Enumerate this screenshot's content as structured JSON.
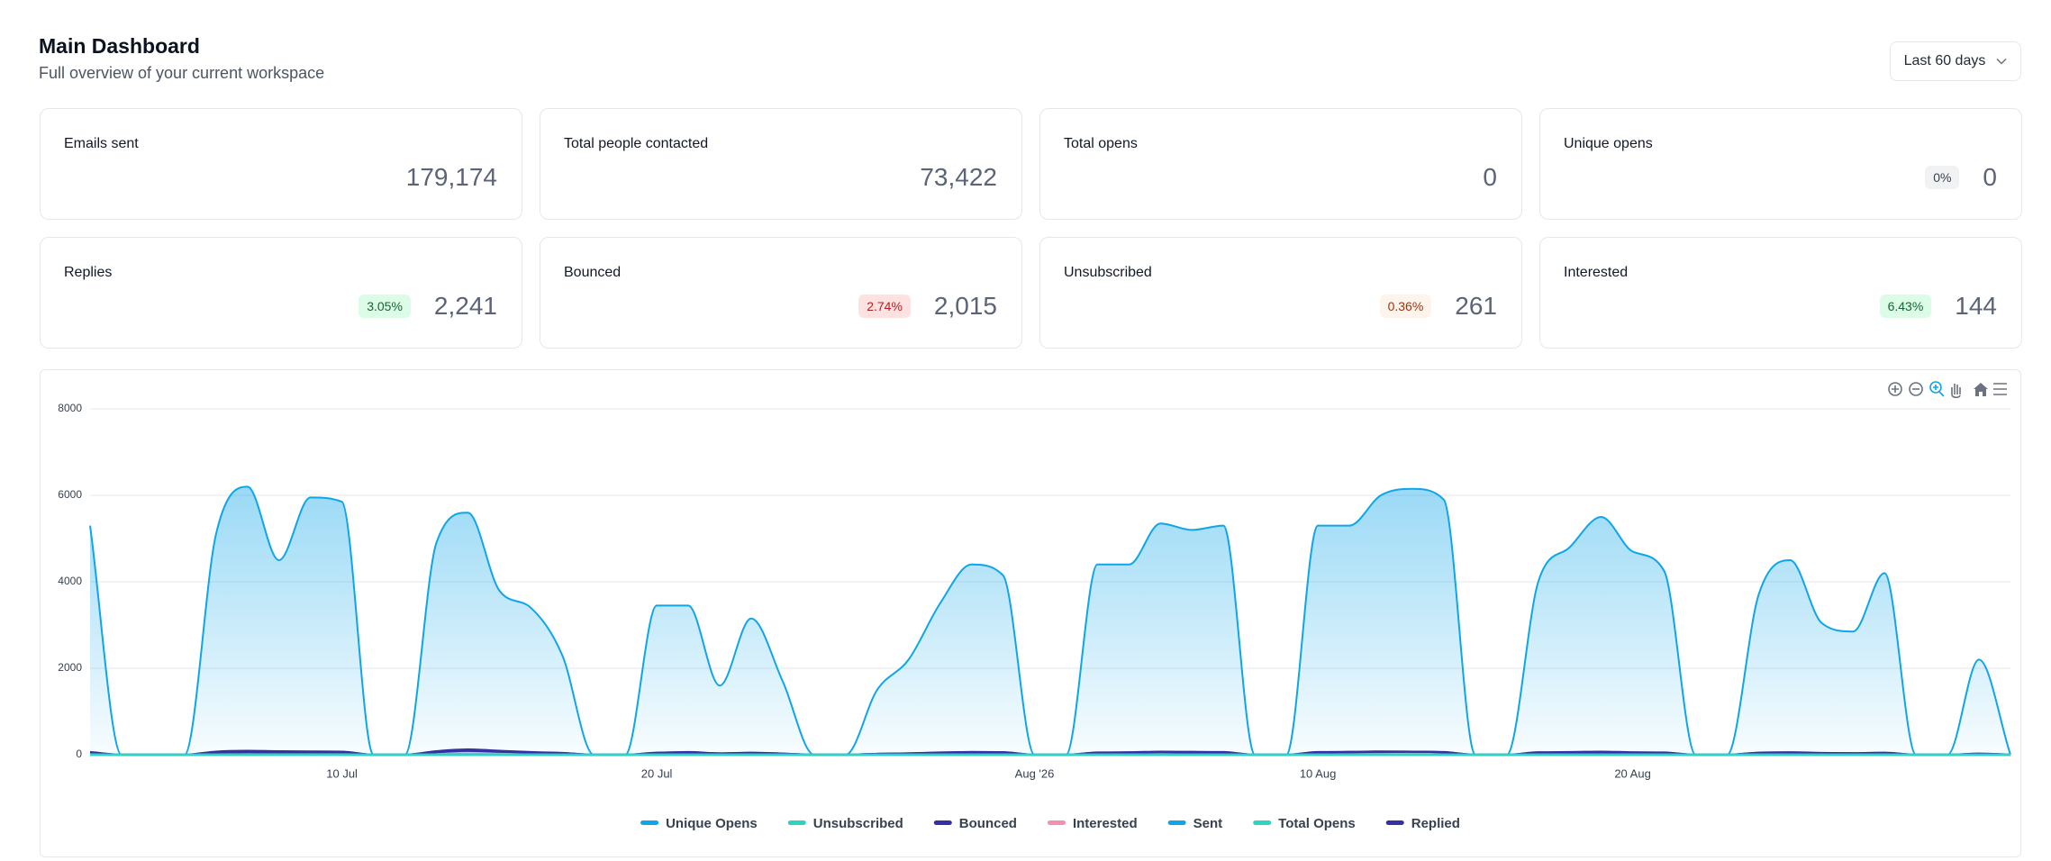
{
  "header": {
    "title": "Main Dashboard",
    "subtitle": "Full overview of your current workspace",
    "range": "Last 60 days"
  },
  "cards": [
    {
      "label": "Emails sent",
      "value": "179,174"
    },
    {
      "label": "Total people contacted",
      "value": "73,422"
    },
    {
      "label": "Total opens",
      "value": "0"
    },
    {
      "label": "Unique opens",
      "value": "0",
      "badge": "0%"
    },
    {
      "label": "Replies",
      "value": "2,241",
      "badge": "3.05%"
    },
    {
      "label": "Bounced",
      "value": "2,015",
      "badge": "2.74%"
    },
    {
      "label": "Unsubscribed",
      "value": "261",
      "badge": "0.36%"
    },
    {
      "label": "Interested",
      "value": "144",
      "badge": "6.43%"
    }
  ],
  "chart_data": {
    "type": "area",
    "categories": [
      null,
      null,
      null,
      null,
      null,
      null,
      null,
      null,
      "10 Jul",
      null,
      null,
      null,
      null,
      null,
      null,
      null,
      null,
      null,
      "20 Jul",
      null,
      null,
      null,
      null,
      null,
      null,
      null,
      null,
      null,
      null,
      null,
      "Aug '26",
      null,
      null,
      null,
      null,
      null,
      null,
      null,
      null,
      "10 Aug",
      null,
      null,
      null,
      null,
      null,
      null,
      null,
      null,
      null,
      "20 Aug",
      null,
      null,
      null,
      null,
      null,
      null,
      null,
      null,
      null,
      null,
      null,
      null
    ],
    "series": [
      {
        "name": "Unique Opens",
        "color": "#0ea5e9",
        "values": [
          0,
          0,
          0,
          0,
          0,
          0,
          0,
          0,
          0,
          0,
          0,
          0,
          0,
          0,
          0,
          0,
          0,
          0,
          0,
          0,
          0,
          0,
          0,
          0,
          0,
          0,
          0,
          0,
          0,
          0,
          0,
          0,
          0,
          0,
          0,
          0,
          0,
          0,
          0,
          0,
          0,
          0,
          0,
          0,
          0,
          0,
          0,
          0,
          0,
          0,
          0,
          0,
          0,
          0,
          0,
          0,
          0,
          0,
          0,
          0,
          0,
          0
        ]
      },
      {
        "name": "Unsubscribed",
        "color": "#2dd4bf",
        "values": [
          8,
          0,
          0,
          0,
          7,
          10,
          8,
          9,
          8,
          0,
          0,
          9,
          12,
          8,
          6,
          4,
          0,
          0,
          5,
          6,
          3,
          5,
          3,
          0,
          0,
          3,
          4,
          6,
          7,
          6,
          0,
          0,
          6,
          7,
          8,
          7,
          7,
          0,
          0,
          7,
          7,
          8,
          8,
          7,
          0,
          0,
          6,
          6,
          7,
          6,
          5,
          0,
          0,
          5,
          6,
          4,
          4,
          5,
          0,
          0,
          3,
          0
        ]
      },
      {
        "name": "Bounced",
        "color": "#3730a3",
        "values": [
          50,
          0,
          0,
          0,
          40,
          60,
          50,
          55,
          50,
          0,
          0,
          60,
          90,
          70,
          50,
          35,
          0,
          0,
          40,
          60,
          30,
          45,
          25,
          0,
          0,
          20,
          30,
          45,
          60,
          55,
          0,
          0,
          45,
          50,
          60,
          55,
          50,
          0,
          0,
          55,
          60,
          65,
          70,
          55,
          0,
          0,
          45,
          50,
          55,
          45,
          40,
          0,
          0,
          40,
          45,
          35,
          30,
          40,
          0,
          0,
          20,
          0
        ]
      },
      {
        "name": "Interested",
        "color": "#f48fb1",
        "values": [
          4,
          0,
          0,
          0,
          4,
          5,
          4,
          4,
          3,
          0,
          0,
          4,
          5,
          3,
          3,
          2,
          0,
          0,
          2,
          3,
          1,
          2,
          1,
          0,
          0,
          1,
          2,
          3,
          3,
          3,
          0,
          0,
          3,
          3,
          4,
          3,
          3,
          0,
          0,
          3,
          3,
          4,
          4,
          3,
          0,
          0,
          3,
          3,
          3,
          3,
          2,
          0,
          0,
          2,
          3,
          2,
          2,
          2,
          0,
          0,
          1,
          0
        ]
      },
      {
        "name": "Sent",
        "color": "#0ea5e9",
        "values": [
          5300,
          0,
          0,
          0,
          5100,
          6200,
          4500,
          5950,
          5850,
          0,
          0,
          4900,
          5600,
          3800,
          3400,
          2300,
          0,
          0,
          3450,
          3450,
          1600,
          3150,
          1700,
          0,
          0,
          1500,
          2200,
          3500,
          4400,
          4150,
          0,
          0,
          4400,
          4400,
          5350,
          5200,
          5300,
          0,
          0,
          5300,
          5300,
          6000,
          6150,
          5900,
          0,
          0,
          4000,
          4800,
          5500,
          4700,
          4250,
          0,
          0,
          3700,
          4500,
          3050,
          2850,
          4200,
          0,
          0,
          2200,
          0
        ]
      },
      {
        "name": "Total Opens",
        "color": "#2dd4bf",
        "values": [
          0,
          0,
          0,
          0,
          0,
          0,
          0,
          0,
          0,
          0,
          0,
          0,
          0,
          0,
          0,
          0,
          0,
          0,
          0,
          0,
          0,
          0,
          0,
          0,
          0,
          0,
          0,
          0,
          0,
          0,
          0,
          0,
          0,
          0,
          0,
          0,
          0,
          0,
          0,
          0,
          0,
          0,
          0,
          0,
          0,
          0,
          0,
          0,
          0,
          0,
          0,
          0,
          0,
          0,
          0,
          0,
          0,
          0,
          0,
          0,
          0,
          0
        ]
      },
      {
        "name": "Replied",
        "color": "#3730a3",
        "values": [
          60,
          0,
          0,
          0,
          70,
          90,
          80,
          75,
          70,
          0,
          0,
          80,
          120,
          90,
          60,
          40,
          0,
          0,
          45,
          50,
          30,
          40,
          25,
          0,
          0,
          20,
          30,
          50,
          60,
          55,
          0,
          0,
          50,
          55,
          70,
          65,
          60,
          0,
          0,
          60,
          65,
          75,
          70,
          60,
          0,
          0,
          55,
          60,
          70,
          55,
          50,
          0,
          0,
          45,
          55,
          40,
          35,
          45,
          0,
          0,
          25,
          0
        ]
      }
    ],
    "ylim": [
      0,
      8000
    ],
    "yticks": [
      0,
      2000,
      4000,
      6000,
      8000
    ],
    "grid": true,
    "legend": "bottom"
  }
}
